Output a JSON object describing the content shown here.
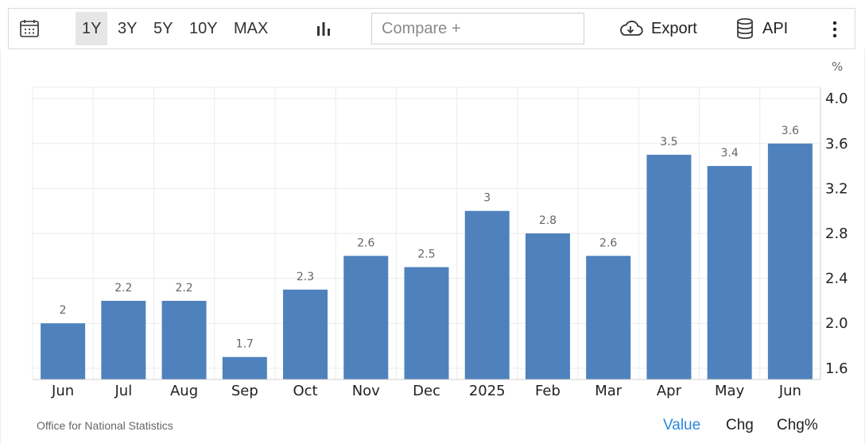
{
  "toolbar": {
    "ranges": [
      "1Y",
      "3Y",
      "5Y",
      "10Y",
      "MAX"
    ],
    "active_range": "1Y",
    "compare_placeholder": "Compare +",
    "export_label": "Export",
    "api_label": "API",
    "icons": [
      "calendar-icon",
      "bar-chart-icon",
      "cloud-download-icon",
      "database-icon",
      "more-vertical-icon"
    ]
  },
  "chart_data": {
    "type": "bar",
    "categories": [
      "Jun",
      "Jul",
      "Aug",
      "Sep",
      "Oct",
      "Nov",
      "Dec",
      "2025",
      "Feb",
      "Mar",
      "Apr",
      "May",
      "Jun"
    ],
    "values": [
      2,
      2.2,
      2.2,
      1.7,
      2.3,
      2.6,
      2.5,
      3,
      2.8,
      2.6,
      3.5,
      3.4,
      3.6
    ],
    "value_labels": [
      "2",
      "2.2",
      "2.2",
      "1.7",
      "2.3",
      "2.6",
      "2.5",
      "3",
      "2.8",
      "2.6",
      "3.5",
      "3.4",
      "3.6"
    ],
    "ylim": [
      1.5,
      4.1
    ],
    "yticks": [
      1.6,
      2.0,
      2.4,
      2.8,
      3.2,
      3.6,
      4.0
    ],
    "ytick_labels": [
      "1.6",
      "2.0",
      "2.4",
      "2.8",
      "3.2",
      "3.6",
      "4.0"
    ],
    "yunit": "%",
    "y_axis_side": "right",
    "grid": true,
    "bar_color": "#4f81bd"
  },
  "footer": {
    "source": "Office for National Statistics",
    "tabs": [
      "Value",
      "Chg",
      "Chg%"
    ],
    "active_tab": "Value",
    "active_color": "#2b86d9"
  }
}
